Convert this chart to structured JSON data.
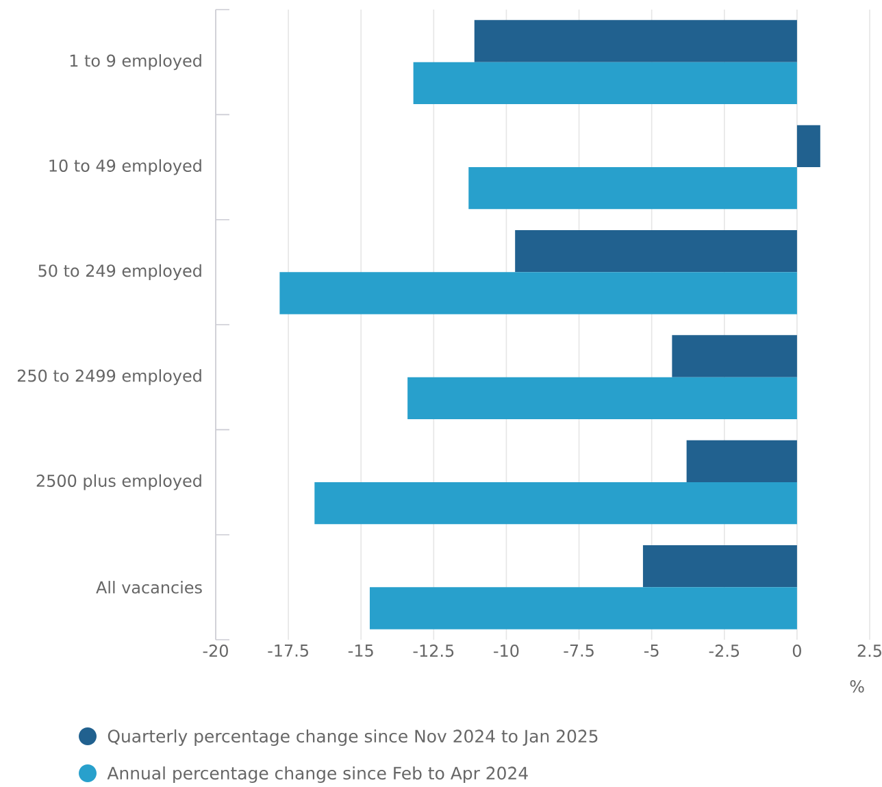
{
  "chart_data": {
    "type": "bar",
    "orientation": "horizontal",
    "xlabel": "%",
    "categories": [
      "1 to 9 employed",
      "10 to 49 employed",
      "50 to 249 employed",
      "250 to 2499 employed",
      "2500 plus employed",
      "All vacancies"
    ],
    "series": [
      {
        "name": "Quarterly percentage change since Nov 2024 to Jan 2025",
        "color": "#21618f",
        "values": [
          -11.1,
          0.8,
          -9.7,
          -4.3,
          -3.8,
          -5.3
        ]
      },
      {
        "name": "Annual percentage change since Feb to Apr 2024",
        "color": "#28a0cc",
        "values": [
          -13.2,
          -11.3,
          -17.8,
          -13.4,
          -16.6,
          -14.7
        ]
      }
    ],
    "xlim": [
      -20,
      2.5
    ],
    "xticks": [
      -20,
      -17.5,
      -15,
      -12.5,
      -10,
      -7.5,
      -5,
      -2.5,
      0,
      2.5
    ],
    "grid": "x",
    "legend": "bottom"
  }
}
